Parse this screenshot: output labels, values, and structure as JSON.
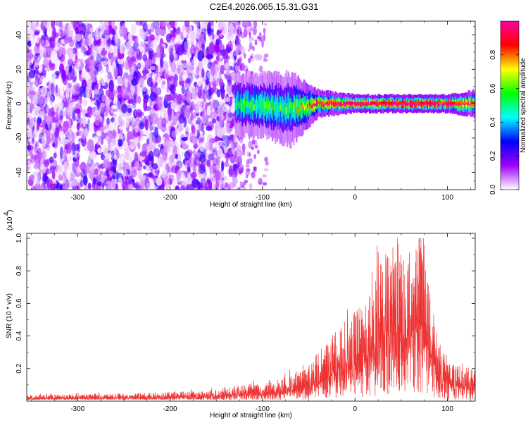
{
  "title": "C2E4.2026.065.15.31.G31",
  "chart_data": [
    {
      "type": "heatmap",
      "name": "spectrogram",
      "xlabel": "Height of straight line (km)",
      "ylabel": "Frequency (Hz)",
      "xlim": [
        -355,
        130
      ],
      "ylim": [
        -50,
        48
      ],
      "x_ticks": [
        -300,
        -200,
        -100,
        0,
        100
      ],
      "x_tick_labels": [
        "-300",
        "-200",
        "-100",
        "0",
        "100"
      ],
      "y_ticks": [
        -40,
        -20,
        0,
        20,
        40
      ],
      "y_tick_labels": [
        "-40",
        "-20",
        "0",
        "20",
        "40"
      ],
      "noise_region": {
        "x_range": [
          -355,
          -130
        ],
        "freq_range": [
          -50,
          48
        ],
        "amplitude_range": [
          0.0,
          0.25
        ]
      },
      "sparse_region": {
        "x_range": [
          -130,
          -95
        ],
        "density": "low"
      },
      "signal_band": [
        {
          "x": -130,
          "center_hz": 0,
          "half_width_hz": 7,
          "amplitude": 0.4
        },
        {
          "x": -100,
          "center_hz": -1,
          "half_width_hz": 7,
          "amplitude": 0.45
        },
        {
          "x": -70,
          "center_hz": -3,
          "half_width_hz": 8,
          "amplitude": 0.45
        },
        {
          "x": -40,
          "center_hz": 0,
          "half_width_hz": 3,
          "amplitude": 0.75
        },
        {
          "x": 0,
          "center_hz": 0,
          "half_width_hz": 2,
          "amplitude": 0.85
        },
        {
          "x": 50,
          "center_hz": 0,
          "half_width_hz": 2,
          "amplitude": 0.9
        },
        {
          "x": 100,
          "center_hz": 0,
          "half_width_hz": 2,
          "amplitude": 0.9
        },
        {
          "x": 130,
          "center_hz": 0,
          "half_width_hz": 3,
          "amplitude": 0.7
        }
      ]
    },
    {
      "type": "colorbar",
      "name": "colorbar",
      "label": "Normalized spectral amplitude",
      "range": [
        0.0,
        1.0
      ],
      "ticks": [
        0.0,
        0.2,
        0.4,
        0.6,
        0.8
      ],
      "tick_labels": [
        "0.0",
        "0.2",
        "0.4",
        "0.6",
        "0.8"
      ],
      "colormap": [
        "#ffffff",
        "#a000ff",
        "#0000ff",
        "#00ffff",
        "#00ff00",
        "#ffff00",
        "#ff0000",
        "#ff00a0"
      ]
    },
    {
      "type": "line",
      "name": "snr",
      "xlabel": "Height of straight line (km)",
      "ylabel": "SNR (10 * v/v)",
      "y_scale_label": "(x10",
      "y_scale_exponent": "4",
      "y_scale_suffix": ")",
      "xlim": [
        -355,
        130
      ],
      "ylim": [
        0,
        1.03
      ],
      "x_ticks": [
        -300,
        -200,
        -100,
        0,
        100
      ],
      "x_tick_labels": [
        "-300",
        "-200",
        "-100",
        "0",
        "100"
      ],
      "y_ticks": [
        0.2,
        0.4,
        0.6,
        0.8,
        1.0
      ],
      "y_tick_labels": [
        "0.2",
        "0.4",
        "0.6",
        "0.8",
        "1.0"
      ],
      "color": "#ee3333",
      "envelope": [
        {
          "x": -355,
          "y": 0.03
        },
        {
          "x": -250,
          "y": 0.04
        },
        {
          "x": -160,
          "y": 0.05
        },
        {
          "x": -120,
          "y": 0.08
        },
        {
          "x": -80,
          "y": 0.11
        },
        {
          "x": -50,
          "y": 0.18
        },
        {
          "x": -30,
          "y": 0.3
        },
        {
          "x": -10,
          "y": 0.4
        },
        {
          "x": 10,
          "y": 0.5
        },
        {
          "x": 30,
          "y": 0.7
        },
        {
          "x": 45,
          "y": 0.8
        },
        {
          "x": 55,
          "y": 0.66
        },
        {
          "x": 65,
          "y": 0.78
        },
        {
          "x": 73,
          "y": 0.9
        },
        {
          "x": 80,
          "y": 0.6
        },
        {
          "x": 90,
          "y": 0.3
        },
        {
          "x": 105,
          "y": 0.18
        },
        {
          "x": 130,
          "y": 0.16
        }
      ],
      "peak_max": 1.0
    }
  ]
}
